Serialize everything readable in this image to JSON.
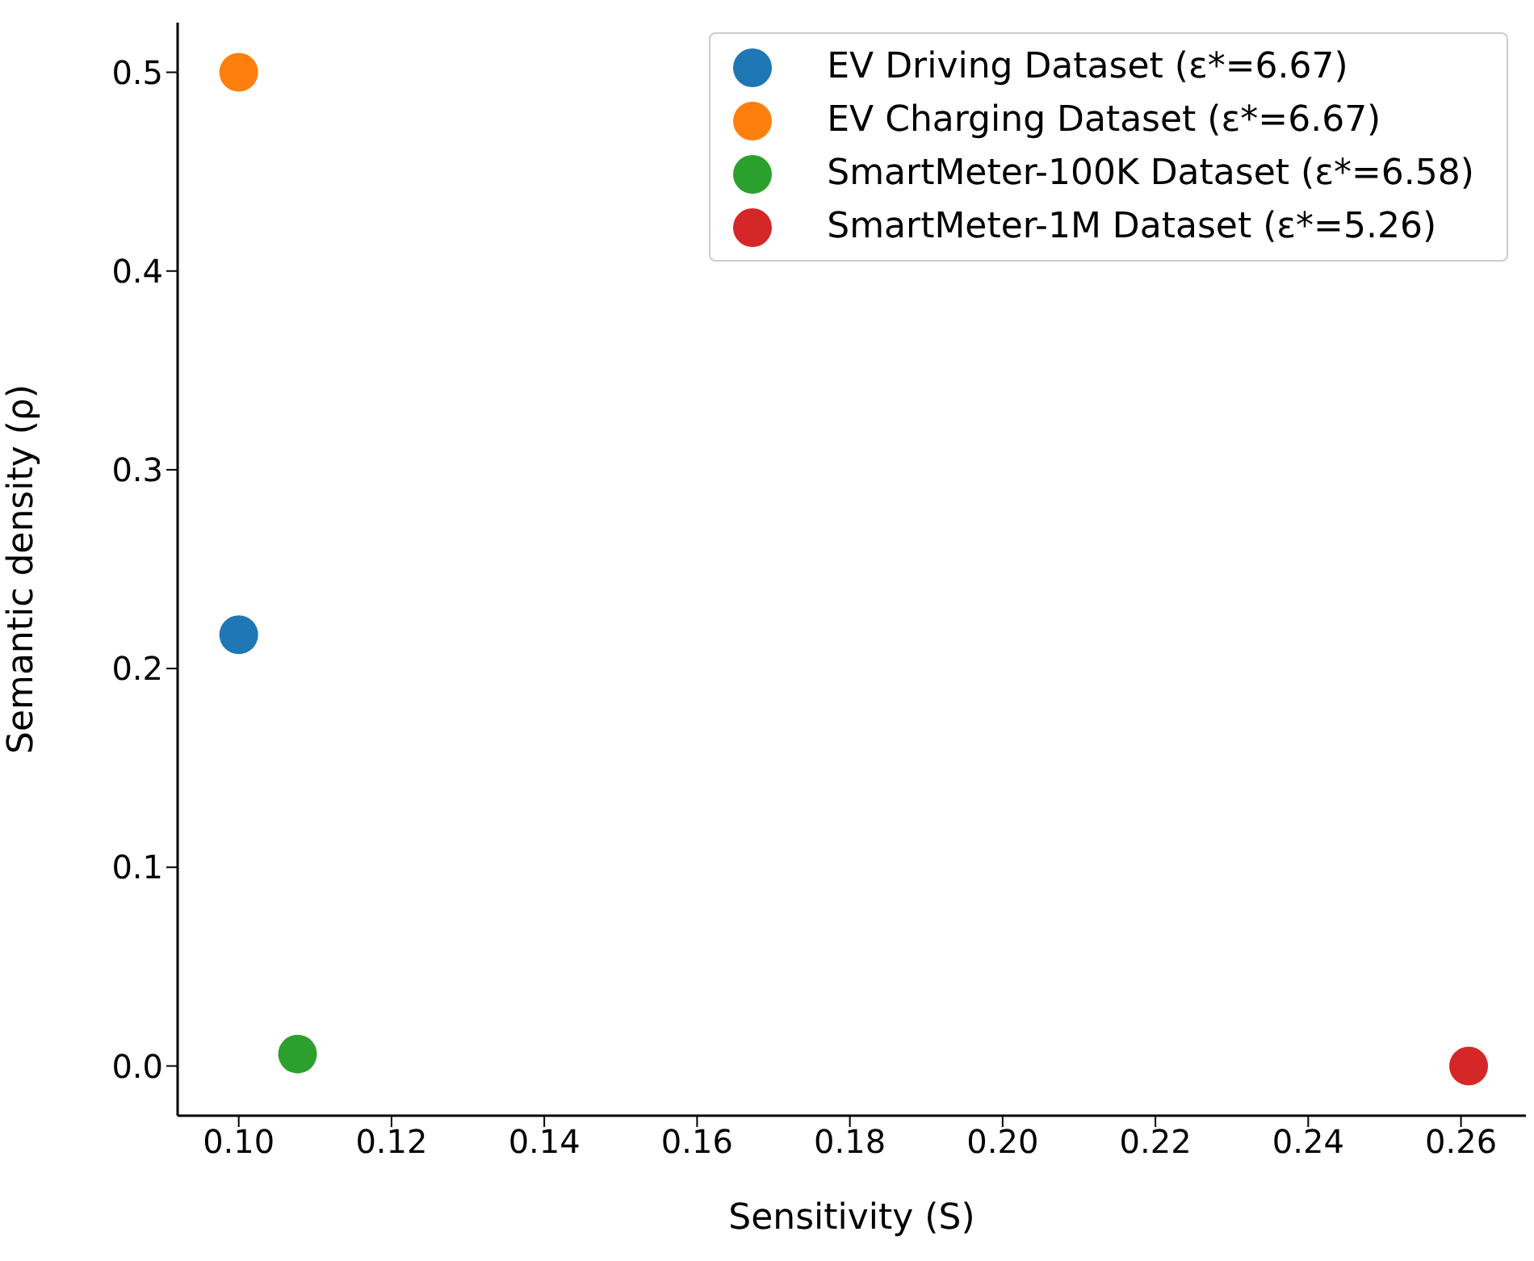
{
  "chart_data": {
    "type": "scatter",
    "xlabel": "Sensitivity (S)",
    "ylabel": "Semantic density (ρ)",
    "xlim": [
      0.092,
      0.2685
    ],
    "xticks": [
      {
        "value": 0.1,
        "label": "0.10"
      },
      {
        "value": 0.12,
        "label": "0.12"
      },
      {
        "value": 0.14,
        "label": "0.14"
      },
      {
        "value": 0.16,
        "label": "0.16"
      },
      {
        "value": 0.18,
        "label": "0.18"
      },
      {
        "value": 0.2,
        "label": "0.20"
      },
      {
        "value": 0.22,
        "label": "0.22"
      },
      {
        "value": 0.24,
        "label": "0.24"
      },
      {
        "value": 0.26,
        "label": "0.26"
      }
    ],
    "ylim": [
      -0.025,
      0.525
    ],
    "yticks": [
      {
        "value": 0,
        "label": "0.0"
      },
      {
        "value": 0.1,
        "label": "0.1"
      },
      {
        "value": 0.2,
        "label": "0.2"
      },
      {
        "value": 0.3,
        "label": "0.3"
      },
      {
        "value": 0.4,
        "label": "0.4"
      },
      {
        "value": 0.5,
        "label": "0.5"
      }
    ],
    "grid": false,
    "legend": "top right",
    "marker": "circle",
    "series": [
      {
        "name": "EV Driving Dataset (ε*=6.67)",
        "color": "#1f77b4",
        "x": [
          0.1
        ],
        "values": [
          0.217
        ]
      },
      {
        "name": "EV Charging Dataset (ε*=6.67)",
        "color": "#ff7f0e",
        "x": [
          0.1
        ],
        "values": [
          0.5
        ]
      },
      {
        "name": "SmartMeter-100K Dataset (ε*=6.58)",
        "color": "#2ca02c",
        "x": [
          0.1077
        ],
        "values": [
          0.006
        ]
      },
      {
        "name": "SmartMeter-1M Dataset (ε*=5.26)",
        "color": "#d62728",
        "x": [
          0.261
        ],
        "values": [
          0.0
        ]
      }
    ]
  }
}
